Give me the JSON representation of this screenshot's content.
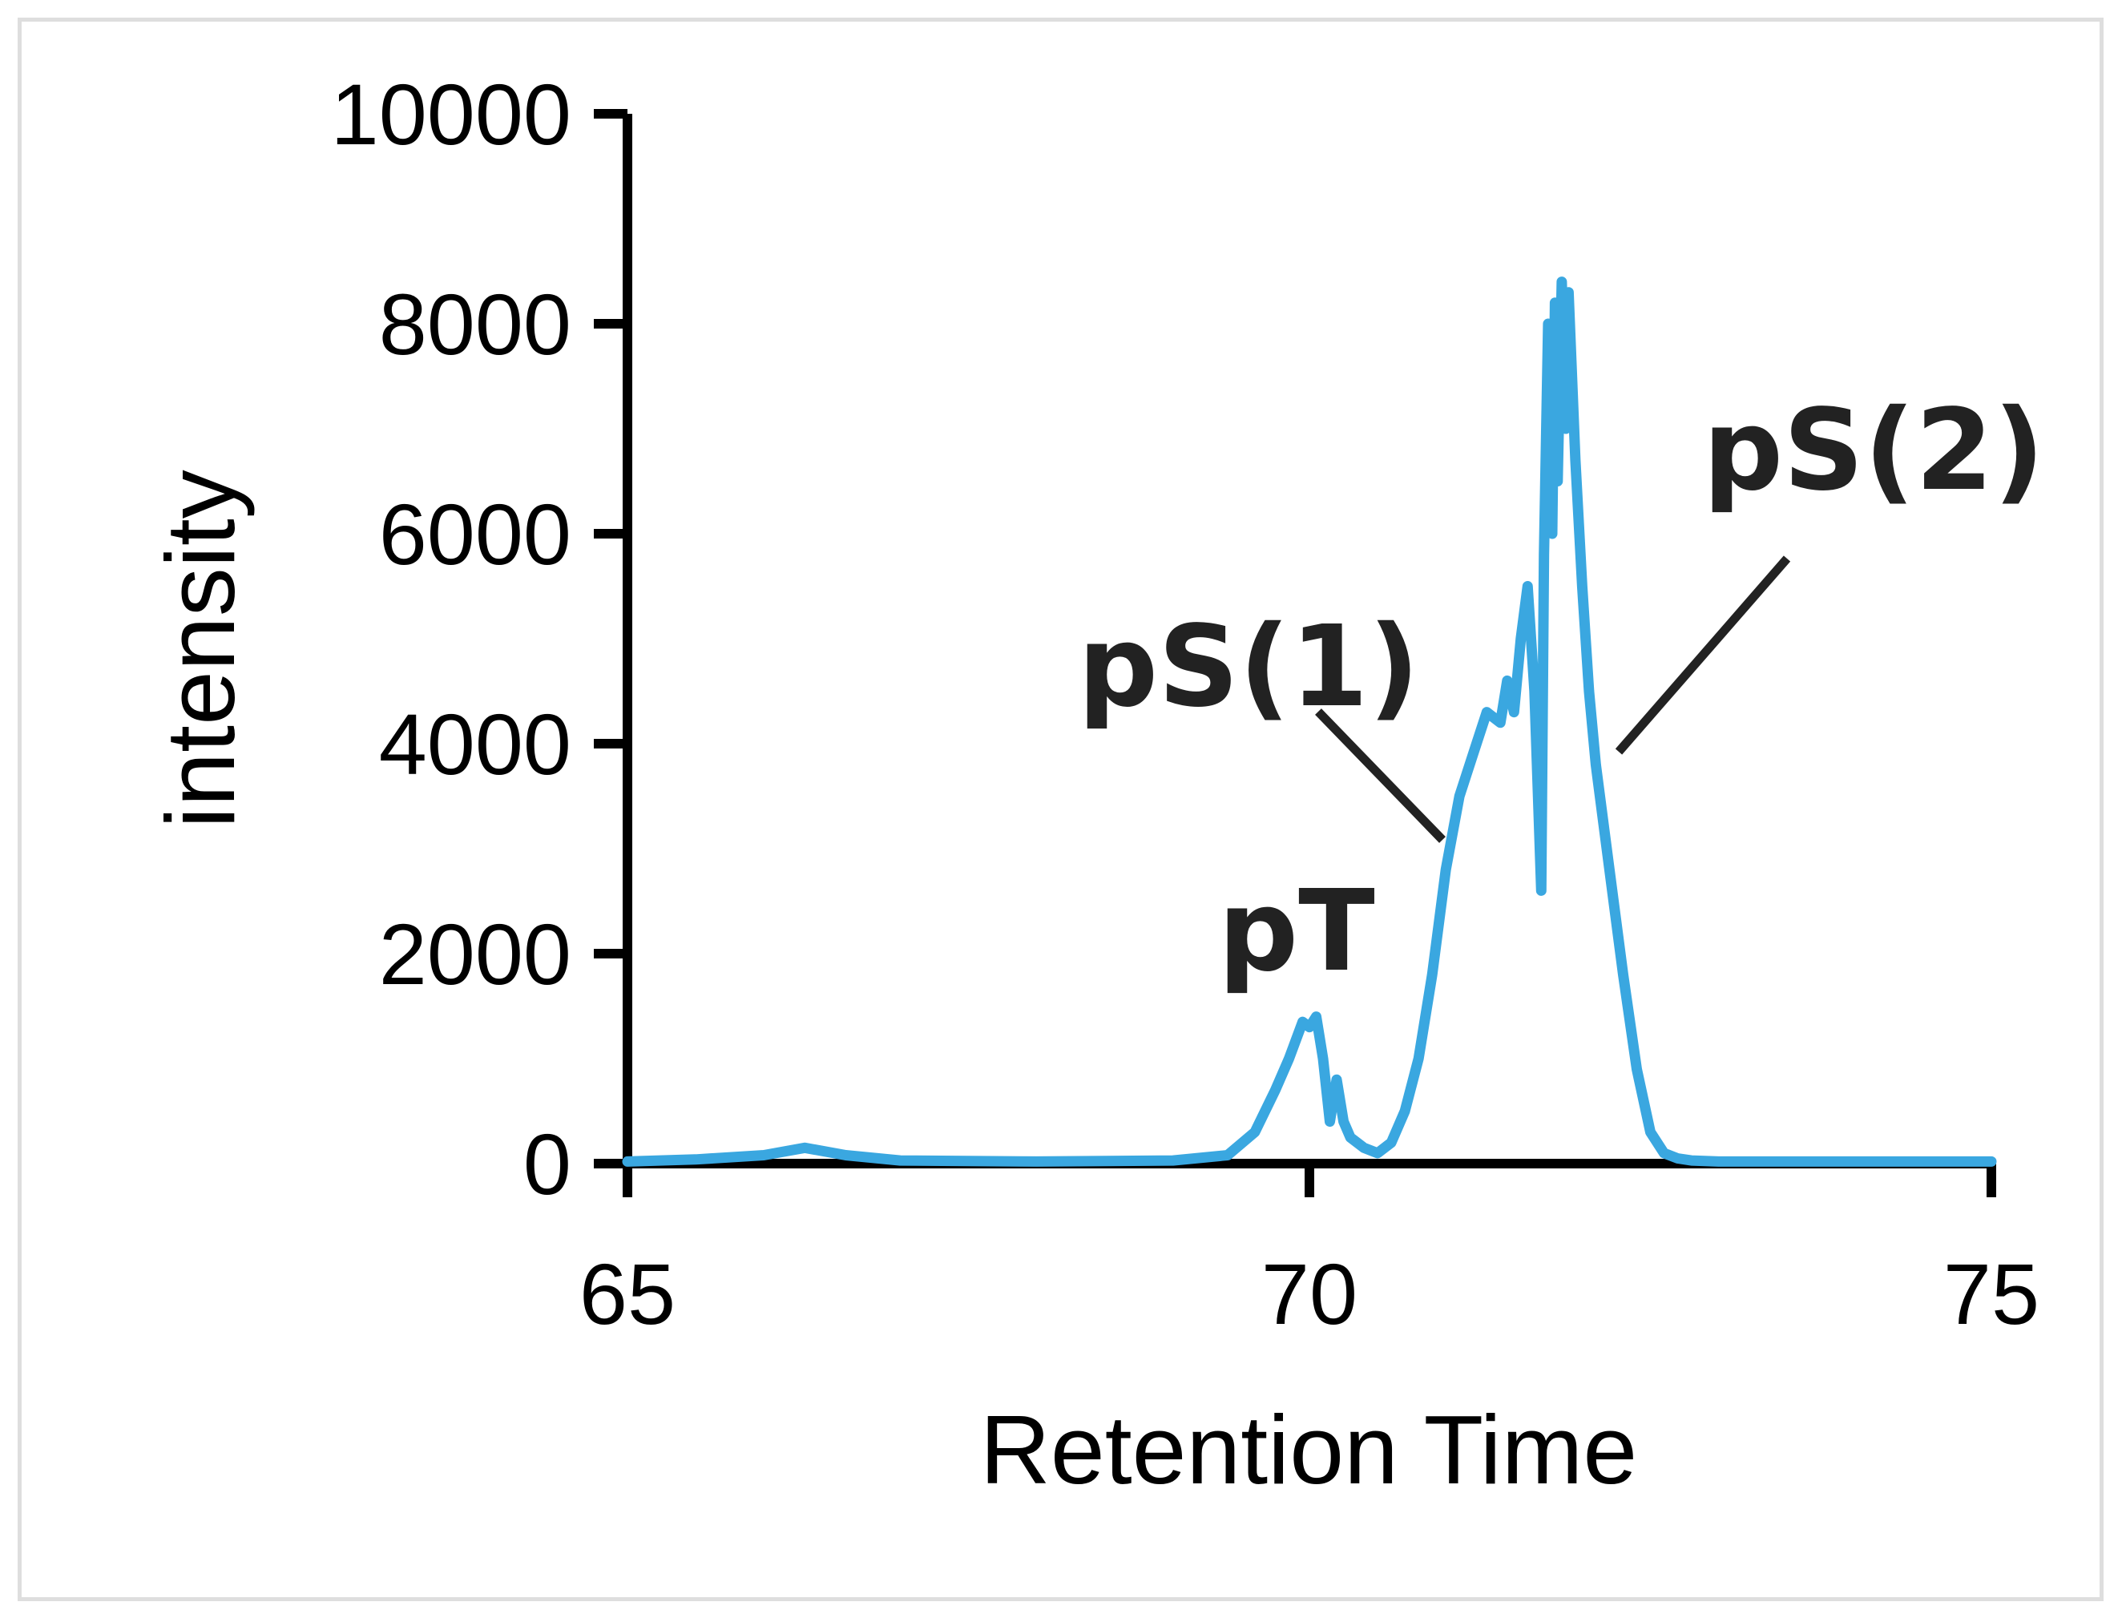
{
  "chart_data": {
    "type": "line",
    "title": "",
    "xlabel": "Retention Time",
    "ylabel": "intensity",
    "xlim": [
      65,
      75
    ],
    "ylim": [
      0,
      10000
    ],
    "x_ticks": [
      "65",
      "70",
      "75"
    ],
    "y_ticks": [
      "0",
      "2000",
      "4000",
      "6000",
      "8000",
      "10000"
    ],
    "grid": false,
    "legend": "none",
    "series_color": "#3aa7e0",
    "series": [
      {
        "x": [
          65.0,
          65.5,
          66.0,
          66.3,
          66.6,
          67.0,
          68.0,
          69.0,
          69.4,
          69.6,
          69.75,
          69.85,
          69.95,
          70.0,
          70.05,
          70.1,
          70.15,
          70.2,
          70.25,
          70.3,
          70.4,
          70.5,
          70.6,
          70.7,
          70.8,
          70.9,
          71.0,
          71.1,
          71.2,
          71.3,
          71.4,
          71.45,
          71.5,
          71.55,
          71.6,
          71.65,
          71.7,
          71.72,
          71.75,
          71.78,
          71.8,
          71.82,
          71.85,
          71.88,
          71.9,
          71.95,
          72.0,
          72.05,
          72.1,
          72.2,
          72.3,
          72.4,
          72.5,
          72.6,
          72.7,
          72.8,
          73.0,
          73.5,
          74.0,
          75.0
        ],
        "y": [
          20,
          40,
          80,
          150,
          80,
          30,
          20,
          30,
          80,
          300,
          700,
          1000,
          1350,
          1300,
          1400,
          1000,
          400,
          800,
          400,
          250,
          150,
          100,
          200,
          500,
          1000,
          1800,
          2800,
          3500,
          3900,
          4300,
          4200,
          4600,
          4300,
          5000,
          5500,
          4500,
          2600,
          5800,
          8000,
          6000,
          8200,
          6500,
          8400,
          7000,
          8300,
          6700,
          5500,
          4500,
          3800,
          2800,
          1800,
          900,
          300,
          100,
          50,
          30,
          20,
          20,
          20,
          20
        ]
      }
    ],
    "annotations": [
      "pT",
      "pS(1)",
      "pS(2)"
    ]
  }
}
